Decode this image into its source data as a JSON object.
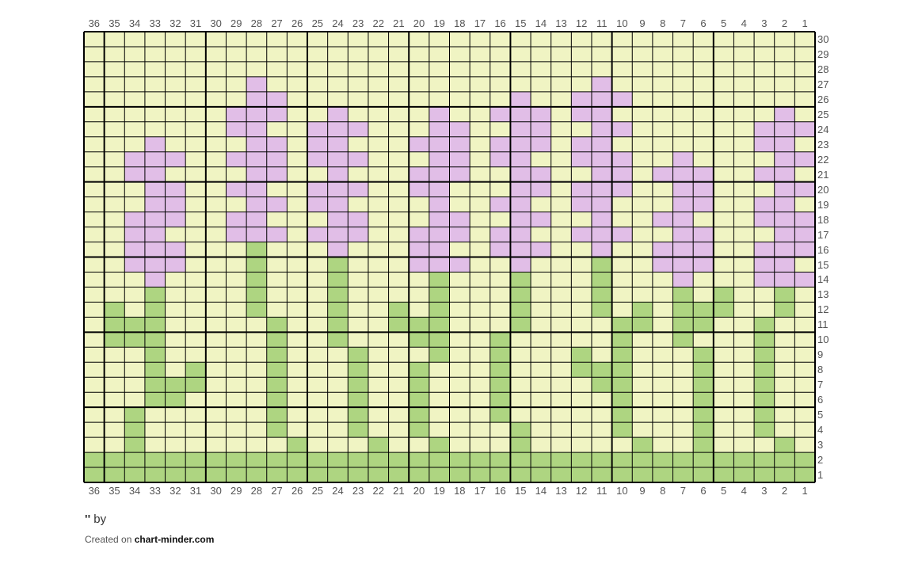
{
  "chart": {
    "columns": 36,
    "rows": 30,
    "colors": {
      "background": "#f0f4c3",
      "purple": "#e1bee7",
      "green": "#aed581",
      "grid": "#000000"
    },
    "grid_rows": [
      {
        "row": 30,
        "purple": [],
        "green": []
      },
      {
        "row": 29,
        "purple": [],
        "green": []
      },
      {
        "row": 28,
        "purple": [],
        "green": []
      },
      {
        "row": 27,
        "purple": [
          28,
          11
        ],
        "green": []
      },
      {
        "row": 26,
        "purple": [
          28,
          27,
          15,
          12,
          11,
          10
        ],
        "green": []
      },
      {
        "row": 25,
        "purple": [
          29,
          28,
          27,
          24,
          19,
          16,
          15,
          14,
          12,
          11,
          2
        ],
        "green": []
      },
      {
        "row": 24,
        "purple": [
          29,
          28,
          25,
          24,
          23,
          19,
          18,
          15,
          14,
          11,
          10,
          3,
          2,
          1
        ],
        "green": []
      },
      {
        "row": 23,
        "purple": [
          33,
          28,
          27,
          25,
          24,
          20,
          19,
          18,
          16,
          15,
          14,
          12,
          11,
          3,
          2
        ],
        "green": []
      },
      {
        "row": 22,
        "purple": [
          34,
          33,
          32,
          29,
          28,
          27,
          25,
          24,
          23,
          19,
          18,
          16,
          15,
          12,
          11,
          10,
          7,
          2,
          1
        ],
        "green": []
      },
      {
        "row": 21,
        "purple": [
          34,
          33,
          28,
          27,
          24,
          20,
          19,
          18,
          15,
          14,
          11,
          10,
          8,
          7,
          6,
          3,
          2
        ],
        "green": []
      },
      {
        "row": 20,
        "purple": [
          33,
          32,
          29,
          28,
          25,
          24,
          23,
          20,
          19,
          15,
          14,
          12,
          11,
          10,
          7,
          6,
          2,
          1
        ],
        "green": []
      },
      {
        "row": 19,
        "purple": [
          33,
          32,
          28,
          27,
          25,
          24,
          19,
          16,
          15,
          12,
          11,
          7,
          6,
          3,
          2
        ],
        "green": []
      },
      {
        "row": 18,
        "purple": [
          34,
          33,
          32,
          29,
          28,
          24,
          23,
          19,
          18,
          15,
          14,
          11,
          8,
          7,
          3,
          2,
          1
        ],
        "green": []
      },
      {
        "row": 17,
        "purple": [
          34,
          33,
          29,
          28,
          27,
          25,
          24,
          23,
          20,
          19,
          18,
          16,
          15,
          12,
          11,
          10,
          7,
          6,
          2,
          1
        ],
        "green": []
      },
      {
        "row": 16,
        "purple": [
          34,
          33,
          32,
          24,
          20,
          19,
          16,
          15,
          14,
          11,
          8,
          7,
          6,
          3,
          2,
          1
        ],
        "green": [
          28
        ]
      },
      {
        "row": 15,
        "purple": [
          34,
          33,
          32,
          20,
          19,
          18,
          15,
          8,
          7,
          6,
          3,
          2
        ],
        "green": [
          28,
          24,
          11
        ]
      },
      {
        "row": 14,
        "purple": [
          33,
          7,
          3,
          2,
          1
        ],
        "green": [
          28,
          24,
          19,
          15,
          11
        ]
      },
      {
        "row": 13,
        "purple": [],
        "green": [
          33,
          28,
          24,
          19,
          15,
          11,
          7,
          5,
          2
        ]
      },
      {
        "row": 12,
        "purple": [],
        "green": [
          35,
          33,
          28,
          24,
          21,
          19,
          15,
          11,
          9,
          7,
          6,
          5,
          2
        ]
      },
      {
        "row": 11,
        "purple": [],
        "green": [
          35,
          34,
          33,
          27,
          24,
          21,
          20,
          19,
          15,
          10,
          9,
          7,
          6,
          3
        ]
      },
      {
        "row": 10,
        "purple": [],
        "green": [
          35,
          34,
          33,
          27,
          24,
          20,
          19,
          16,
          10,
          7,
          3
        ]
      },
      {
        "row": 9,
        "purple": [],
        "green": [
          33,
          27,
          23,
          19,
          16,
          12,
          10,
          6,
          3
        ]
      },
      {
        "row": 8,
        "purple": [],
        "green": [
          33,
          31,
          27,
          23,
          20,
          16,
          12,
          11,
          10,
          6,
          3
        ]
      },
      {
        "row": 7,
        "purple": [],
        "green": [
          33,
          32,
          31,
          27,
          23,
          20,
          16,
          11,
          10,
          6,
          3
        ]
      },
      {
        "row": 6,
        "purple": [],
        "green": [
          33,
          32,
          27,
          23,
          20,
          16,
          10,
          6,
          3
        ]
      },
      {
        "row": 5,
        "purple": [],
        "green": [
          34,
          27,
          23,
          20,
          16,
          10,
          6,
          3
        ]
      },
      {
        "row": 4,
        "purple": [],
        "green": [
          34,
          27,
          23,
          20,
          15,
          10,
          6,
          3
        ]
      },
      {
        "row": 3,
        "purple": [],
        "green": [
          34,
          26,
          22,
          19,
          15,
          9,
          6,
          2
        ]
      },
      {
        "row": 2,
        "purple": [],
        "green": [
          36,
          35,
          34,
          33,
          32,
          31,
          30,
          29,
          28,
          27,
          26,
          25,
          24,
          23,
          22,
          21,
          20,
          19,
          18,
          17,
          16,
          15,
          14,
          13,
          12,
          11,
          10,
          9,
          8,
          7,
          6,
          5,
          4,
          3,
          2,
          1
        ]
      },
      {
        "row": 1,
        "purple": [],
        "green": [
          36,
          35,
          34,
          33,
          32,
          31,
          30,
          29,
          28,
          27,
          26,
          25,
          24,
          23,
          22,
          21,
          20,
          19,
          18,
          17,
          16,
          15,
          14,
          13,
          12,
          11,
          10,
          9,
          8,
          7,
          6,
          5,
          4,
          3,
          2,
          1
        ]
      }
    ]
  },
  "footer": {
    "title_marks": "''",
    "by_label": " by",
    "created_on": "Created on ",
    "site": "chart-minder.com"
  }
}
